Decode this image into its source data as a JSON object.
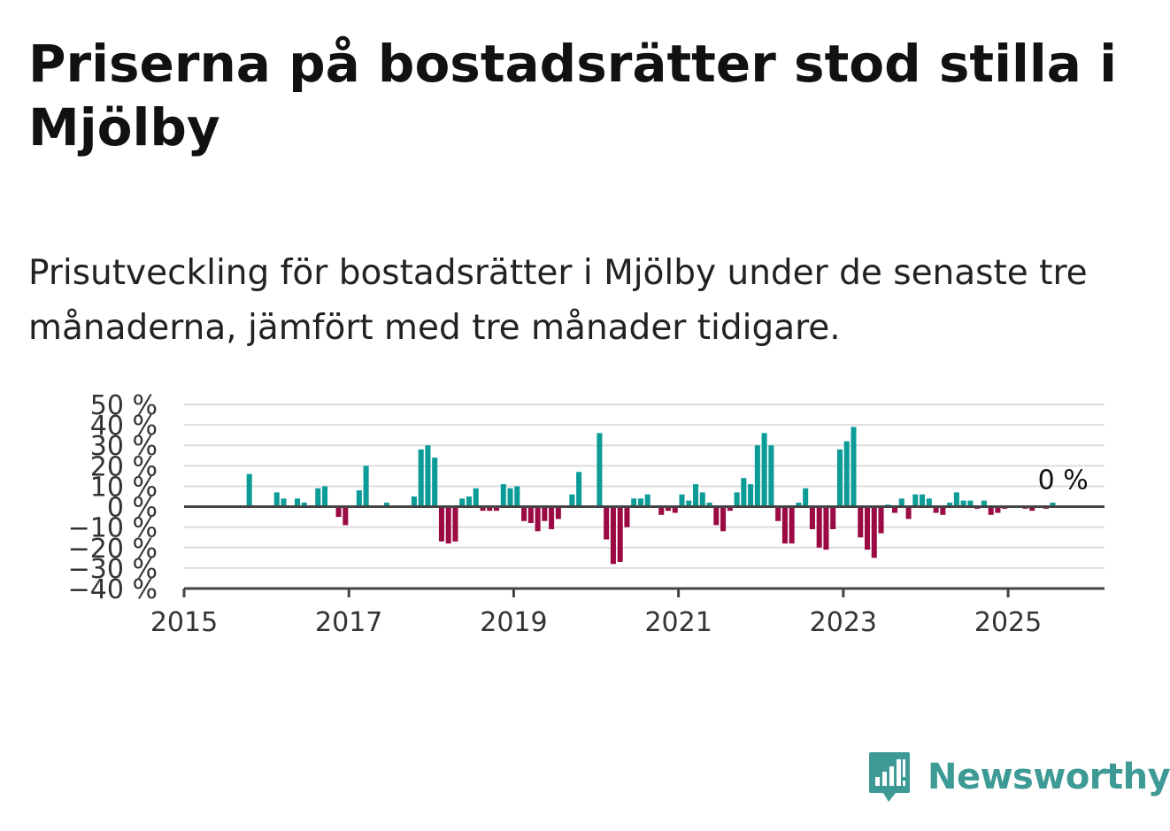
{
  "title": "Priserna på bostadsrätter stod stilla i Mjölby",
  "subtitle": "Prisutveckling för bostadsrätter i Mjölby under de senaste tre månaderna, jämfört med tre månader tidigare.",
  "logo": {
    "text": "Newsworthy",
    "color": "#3d9a95"
  },
  "colors": {
    "positive": "#0b9c97",
    "negative": "#9c0a43",
    "grid": "#dddddd",
    "axis": "#444444"
  },
  "chart_data": {
    "type": "bar",
    "ylabel": "",
    "xlabel": "",
    "ylim": [
      -40,
      50
    ],
    "yticks": [
      50,
      40,
      30,
      20,
      10,
      0,
      -10,
      -20,
      -30,
      -40
    ],
    "ytick_labels": [
      "50 %",
      "40 %",
      "30 %",
      "20 %",
      "10 %",
      "0 %",
      "−10 %",
      "−20 %",
      "−30 %",
      "−40 %"
    ],
    "xlim": [
      2015.0,
      2026.17
    ],
    "xticks": [
      2015,
      2017,
      2019,
      2021,
      2023,
      2025
    ],
    "xtick_labels": [
      "2015",
      "2017",
      "2019",
      "2021",
      "2023",
      "2025"
    ],
    "grid": true,
    "last_value_label": "0 %",
    "points": [
      {
        "x": "2015-10",
        "y": 16
      },
      {
        "x": "2016-02",
        "y": 7
      },
      {
        "x": "2016-03",
        "y": 4
      },
      {
        "x": "2016-05",
        "y": 4
      },
      {
        "x": "2016-06",
        "y": 2
      },
      {
        "x": "2016-08",
        "y": 9
      },
      {
        "x": "2016-09",
        "y": 10
      },
      {
        "x": "2016-11",
        "y": -5
      },
      {
        "x": "2016-12",
        "y": -9
      },
      {
        "x": "2017-02",
        "y": 8
      },
      {
        "x": "2017-03",
        "y": 20
      },
      {
        "x": "2017-06",
        "y": 2
      },
      {
        "x": "2017-10",
        "y": 5
      },
      {
        "x": "2017-11",
        "y": 28
      },
      {
        "x": "2017-12",
        "y": 30
      },
      {
        "x": "2018-01",
        "y": 24
      },
      {
        "x": "2018-02",
        "y": -17
      },
      {
        "x": "2018-03",
        "y": -18
      },
      {
        "x": "2018-04",
        "y": -17
      },
      {
        "x": "2018-05",
        "y": 4
      },
      {
        "x": "2018-06",
        "y": 5
      },
      {
        "x": "2018-07",
        "y": 9
      },
      {
        "x": "2018-08",
        "y": -2
      },
      {
        "x": "2018-09",
        "y": -2
      },
      {
        "x": "2018-10",
        "y": -2
      },
      {
        "x": "2018-11",
        "y": 11
      },
      {
        "x": "2018-12",
        "y": 9
      },
      {
        "x": "2019-01",
        "y": 10
      },
      {
        "x": "2019-02",
        "y": -7
      },
      {
        "x": "2019-03",
        "y": -8
      },
      {
        "x": "2019-04",
        "y": -12
      },
      {
        "x": "2019-05",
        "y": -7
      },
      {
        "x": "2019-06",
        "y": -11
      },
      {
        "x": "2019-07",
        "y": -6
      },
      {
        "x": "2019-09",
        "y": 6
      },
      {
        "x": "2019-10",
        "y": 17
      },
      {
        "x": "2020-01",
        "y": 36
      },
      {
        "x": "2020-02",
        "y": -16
      },
      {
        "x": "2020-03",
        "y": -28
      },
      {
        "x": "2020-04",
        "y": -27
      },
      {
        "x": "2020-05",
        "y": -10
      },
      {
        "x": "2020-06",
        "y": 4
      },
      {
        "x": "2020-07",
        "y": 4
      },
      {
        "x": "2020-08",
        "y": 6
      },
      {
        "x": "2020-10",
        "y": -4
      },
      {
        "x": "2020-11",
        "y": -2
      },
      {
        "x": "2020-12",
        "y": -3
      },
      {
        "x": "2021-01",
        "y": 6
      },
      {
        "x": "2021-02",
        "y": 3
      },
      {
        "x": "2021-03",
        "y": 11
      },
      {
        "x": "2021-04",
        "y": 7
      },
      {
        "x": "2021-05",
        "y": 2
      },
      {
        "x": "2021-06",
        "y": -9
      },
      {
        "x": "2021-07",
        "y": -12
      },
      {
        "x": "2021-08",
        "y": -2
      },
      {
        "x": "2021-09",
        "y": 7
      },
      {
        "x": "2021-10",
        "y": 14
      },
      {
        "x": "2021-11",
        "y": 11
      },
      {
        "x": "2021-12",
        "y": 30
      },
      {
        "x": "2022-01",
        "y": 36
      },
      {
        "x": "2022-02",
        "y": 30
      },
      {
        "x": "2022-03",
        "y": -7
      },
      {
        "x": "2022-04",
        "y": -18
      },
      {
        "x": "2022-05",
        "y": -18
      },
      {
        "x": "2022-06",
        "y": 2
      },
      {
        "x": "2022-07",
        "y": 9
      },
      {
        "x": "2022-08",
        "y": -11
      },
      {
        "x": "2022-09",
        "y": -20
      },
      {
        "x": "2022-10",
        "y": -21
      },
      {
        "x": "2022-11",
        "y": -11
      },
      {
        "x": "2022-12",
        "y": 28
      },
      {
        "x": "2023-01",
        "y": 32
      },
      {
        "x": "2023-02",
        "y": 39
      },
      {
        "x": "2023-03",
        "y": -15
      },
      {
        "x": "2023-04",
        "y": -21
      },
      {
        "x": "2023-05",
        "y": -25
      },
      {
        "x": "2023-06",
        "y": -13
      },
      {
        "x": "2023-07",
        "y": 1
      },
      {
        "x": "2023-08",
        "y": -3
      },
      {
        "x": "2023-09",
        "y": 4
      },
      {
        "x": "2023-10",
        "y": -6
      },
      {
        "x": "2023-11",
        "y": 6
      },
      {
        "x": "2023-12",
        "y": 6
      },
      {
        "x": "2024-01",
        "y": 4
      },
      {
        "x": "2024-02",
        "y": -3
      },
      {
        "x": "2024-03",
        "y": -4
      },
      {
        "x": "2024-04",
        "y": 2
      },
      {
        "x": "2024-05",
        "y": 7
      },
      {
        "x": "2024-06",
        "y": 3
      },
      {
        "x": "2024-07",
        "y": 3
      },
      {
        "x": "2024-08",
        "y": -1
      },
      {
        "x": "2024-09",
        "y": 3
      },
      {
        "x": "2024-10",
        "y": -4
      },
      {
        "x": "2024-11",
        "y": -3
      },
      {
        "x": "2024-12",
        "y": -1
      },
      {
        "x": "2025-01",
        "y": 0
      },
      {
        "x": "2025-02",
        "y": 0
      },
      {
        "x": "2025-03",
        "y": -1
      },
      {
        "x": "2025-04",
        "y": -2
      },
      {
        "x": "2025-05",
        "y": 0
      },
      {
        "x": "2025-06",
        "y": -1
      },
      {
        "x": "2025-07",
        "y": 2
      },
      {
        "x": "2025-08",
        "y": 0
      }
    ]
  }
}
